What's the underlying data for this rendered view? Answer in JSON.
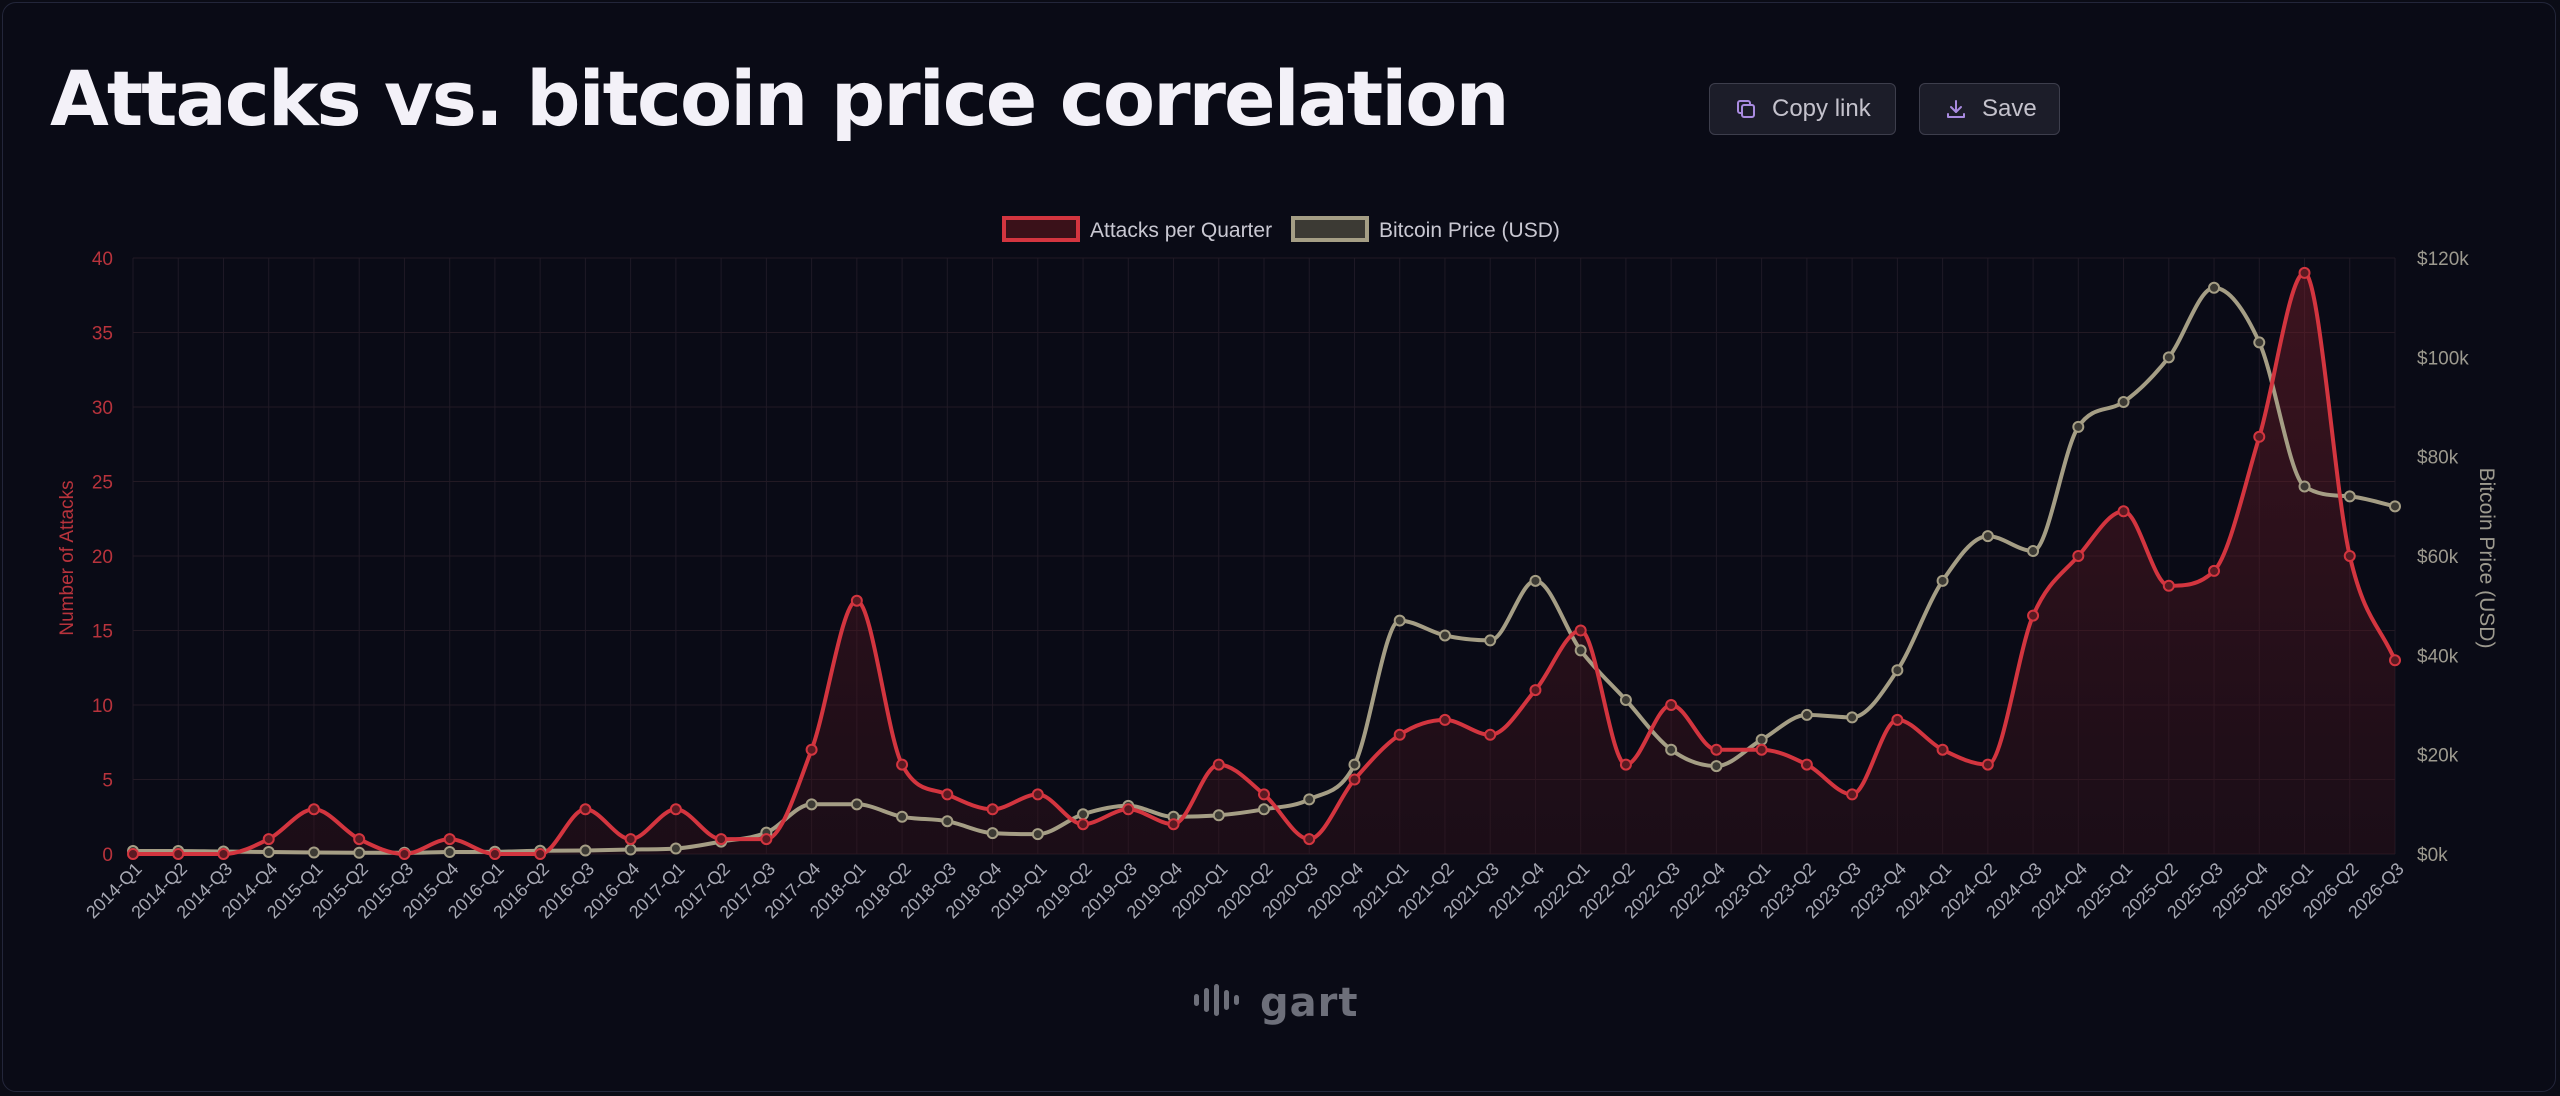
{
  "header": {
    "title": "Attacks vs. bitcoin price correlation",
    "copy_label": "Copy link",
    "save_label": "Save"
  },
  "icons": {
    "copy": "copy-icon",
    "save": "download-icon",
    "logo": "sound-wave-icon"
  },
  "logo": {
    "text": "gart"
  },
  "colors": {
    "background": "#0a0b16",
    "attacks": "#d3353f",
    "bitcoin": "#a59e85",
    "accent_icon": "#a98be0"
  },
  "chart_data": {
    "type": "line",
    "categories": [
      "2014-Q1",
      "2014-Q2",
      "2014-Q3",
      "2014-Q4",
      "2015-Q1",
      "2015-Q2",
      "2015-Q3",
      "2015-Q4",
      "2016-Q1",
      "2016-Q2",
      "2016-Q3",
      "2016-Q4",
      "2017-Q1",
      "2017-Q2",
      "2017-Q3",
      "2017-Q4",
      "2018-Q1",
      "2018-Q2",
      "2018-Q3",
      "2018-Q4",
      "2019-Q1",
      "2019-Q2",
      "2019-Q3",
      "2019-Q4",
      "2020-Q1",
      "2020-Q2",
      "2020-Q3",
      "2020-Q4",
      "2021-Q1",
      "2021-Q2",
      "2021-Q3",
      "2021-Q4",
      "2022-Q1",
      "2022-Q2",
      "2022-Q3",
      "2022-Q4",
      "2023-Q1",
      "2023-Q2",
      "2023-Q3",
      "2023-Q4",
      "2024-Q1",
      "2024-Q2",
      "2024-Q3",
      "2024-Q4",
      "2025-Q1",
      "2025-Q2",
      "2025-Q3",
      "2025-Q4",
      "2026-Q1",
      "2026-Q2",
      "2026-Q3"
    ],
    "series": [
      {
        "name": "Attacks per Quarter",
        "axis": "left",
        "color": "#d3353f",
        "fill": true,
        "values": [
          0,
          0,
          0,
          1,
          3,
          1,
          0,
          1,
          0,
          0,
          3,
          1,
          3,
          1,
          1,
          7,
          17,
          6,
          4,
          3,
          4,
          2,
          3,
          2,
          6,
          4,
          1,
          5,
          8,
          9,
          8,
          11,
          15,
          6,
          10,
          7,
          7,
          6,
          4,
          9,
          7,
          6,
          16,
          20,
          23,
          18,
          19,
          28,
          39,
          20,
          13
        ]
      },
      {
        "name": "Bitcoin Price (USD)",
        "axis": "right",
        "color": "#a59e85",
        "fill": false,
        "values": [
          600,
          600,
          500,
          400,
          300,
          250,
          250,
          400,
          450,
          650,
          700,
          900,
          1100,
          2500,
          4300,
          10000,
          10000,
          7500,
          6600,
          4200,
          4000,
          8000,
          9700,
          7500,
          7800,
          9000,
          11000,
          18000,
          47000,
          44000,
          43000,
          55000,
          41000,
          31000,
          21000,
          17700,
          23000,
          28000,
          27500,
          37000,
          55000,
          64000,
          61000,
          86000,
          91000,
          100000,
          114000,
          103000,
          74000,
          72000,
          70000
        ]
      }
    ],
    "yaxis_left": {
      "label": "Number of Attacks",
      "min": 0,
      "max": 40,
      "ticks": [
        "0",
        "5",
        "10",
        "15",
        "20",
        "25",
        "30",
        "35",
        "40"
      ]
    },
    "yaxis_right": {
      "label": "Bitcoin Price (USD)",
      "min": 0,
      "max": 120000,
      "ticks": [
        "$0k",
        "$20k",
        "$40k",
        "$60k",
        "$80k",
        "$100k",
        "$120k"
      ]
    },
    "legend": {
      "position": "top-center"
    },
    "grid": true
  }
}
